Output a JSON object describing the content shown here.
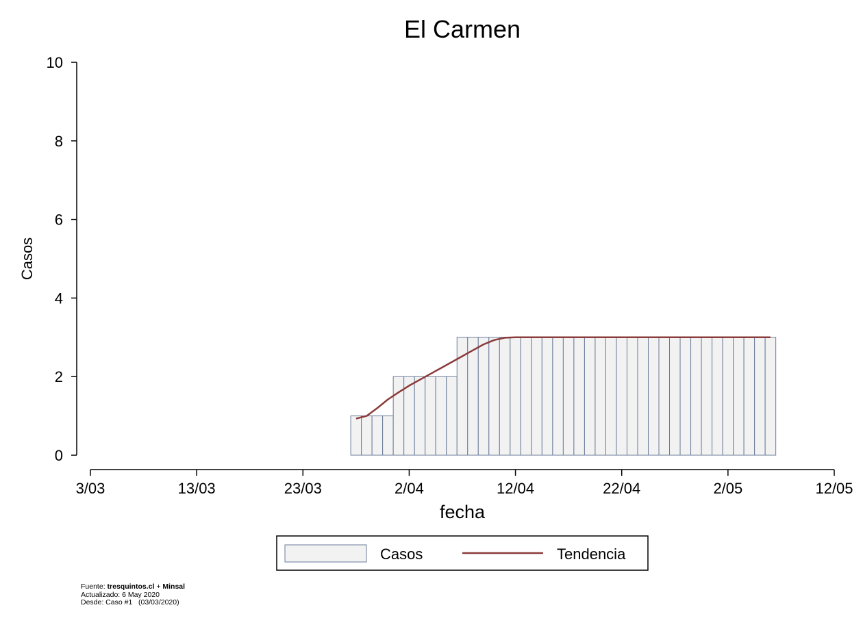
{
  "chart_data": {
    "type": "bar",
    "title": "El Carmen",
    "xlabel": "fecha",
    "ylabel": "Casos",
    "ylim": [
      0,
      10
    ],
    "yticks": [
      0,
      2,
      4,
      6,
      8,
      10
    ],
    "xlim": [
      "2020-03-03",
      "2020-05-12"
    ],
    "xticks": [
      {
        "date": "2020-03-03",
        "label": "3/03"
      },
      {
        "date": "2020-03-13",
        "label": "13/03"
      },
      {
        "date": "2020-03-23",
        "label": "23/03"
      },
      {
        "date": "2020-04-02",
        "label": "2/04"
      },
      {
        "date": "2020-04-12",
        "label": "12/04"
      },
      {
        "date": "2020-04-22",
        "label": "22/04"
      },
      {
        "date": "2020-05-02",
        "label": "2/05"
      },
      {
        "date": "2020-05-12",
        "label": "12/05"
      }
    ],
    "grid": false,
    "legend_position": "bottom",
    "series": [
      {
        "name": "Casos",
        "type": "bar",
        "color": "#f2f2f2",
        "edge_color": "#6a7b99",
        "points": [
          {
            "x": "2020-03-28",
            "y": 1
          },
          {
            "x": "2020-03-29",
            "y": 1
          },
          {
            "x": "2020-03-30",
            "y": 1
          },
          {
            "x": "2020-03-31",
            "y": 1
          },
          {
            "x": "2020-04-01",
            "y": 2
          },
          {
            "x": "2020-04-02",
            "y": 2
          },
          {
            "x": "2020-04-03",
            "y": 2
          },
          {
            "x": "2020-04-04",
            "y": 2
          },
          {
            "x": "2020-04-05",
            "y": 2
          },
          {
            "x": "2020-04-06",
            "y": 2
          },
          {
            "x": "2020-04-07",
            "y": 3
          },
          {
            "x": "2020-04-08",
            "y": 3
          },
          {
            "x": "2020-04-09",
            "y": 3
          },
          {
            "x": "2020-04-10",
            "y": 3
          },
          {
            "x": "2020-04-11",
            "y": 3
          },
          {
            "x": "2020-04-12",
            "y": 3
          },
          {
            "x": "2020-04-13",
            "y": 3
          },
          {
            "x": "2020-04-14",
            "y": 3
          },
          {
            "x": "2020-04-15",
            "y": 3
          },
          {
            "x": "2020-04-16",
            "y": 3
          },
          {
            "x": "2020-04-17",
            "y": 3
          },
          {
            "x": "2020-04-18",
            "y": 3
          },
          {
            "x": "2020-04-19",
            "y": 3
          },
          {
            "x": "2020-04-20",
            "y": 3
          },
          {
            "x": "2020-04-21",
            "y": 3
          },
          {
            "x": "2020-04-22",
            "y": 3
          },
          {
            "x": "2020-04-23",
            "y": 3
          },
          {
            "x": "2020-04-24",
            "y": 3
          },
          {
            "x": "2020-04-25",
            "y": 3
          },
          {
            "x": "2020-04-26",
            "y": 3
          },
          {
            "x": "2020-04-27",
            "y": 3
          },
          {
            "x": "2020-04-28",
            "y": 3
          },
          {
            "x": "2020-04-29",
            "y": 3
          },
          {
            "x": "2020-04-30",
            "y": 3
          },
          {
            "x": "2020-05-01",
            "y": 3
          },
          {
            "x": "2020-05-02",
            "y": 3
          },
          {
            "x": "2020-05-03",
            "y": 3
          },
          {
            "x": "2020-05-04",
            "y": 3
          },
          {
            "x": "2020-05-05",
            "y": 3
          },
          {
            "x": "2020-05-06",
            "y": 3
          }
        ]
      },
      {
        "name": "Tendencia",
        "type": "line",
        "color": "#8b3a3a",
        "points": [
          {
            "x": "2020-03-28",
            "y": 0.93
          },
          {
            "x": "2020-03-29",
            "y": 1.0
          },
          {
            "x": "2020-03-30",
            "y": 1.2
          },
          {
            "x": "2020-03-31",
            "y": 1.42
          },
          {
            "x": "2020-04-01",
            "y": 1.6
          },
          {
            "x": "2020-04-02",
            "y": 1.77
          },
          {
            "x": "2020-04-03",
            "y": 1.92
          },
          {
            "x": "2020-04-04",
            "y": 2.07
          },
          {
            "x": "2020-04-05",
            "y": 2.22
          },
          {
            "x": "2020-04-06",
            "y": 2.37
          },
          {
            "x": "2020-04-07",
            "y": 2.52
          },
          {
            "x": "2020-04-08",
            "y": 2.67
          },
          {
            "x": "2020-04-09",
            "y": 2.82
          },
          {
            "x": "2020-04-10",
            "y": 2.93
          },
          {
            "x": "2020-04-11",
            "y": 2.99
          },
          {
            "x": "2020-04-12",
            "y": 3.0
          },
          {
            "x": "2020-04-20",
            "y": 3.0
          },
          {
            "x": "2020-04-30",
            "y": 3.0
          },
          {
            "x": "2020-05-06",
            "y": 3.0
          }
        ]
      }
    ]
  },
  "credits": {
    "fuente_label": "Fuente:",
    "fuente_source1": "tresquintos.cl",
    "fuente_plus": "+",
    "fuente_source2": "Minsal",
    "actualizado": "Actualizado: 6 May 2020",
    "desde": "Desde: Caso #1   (03/03/2020)"
  }
}
